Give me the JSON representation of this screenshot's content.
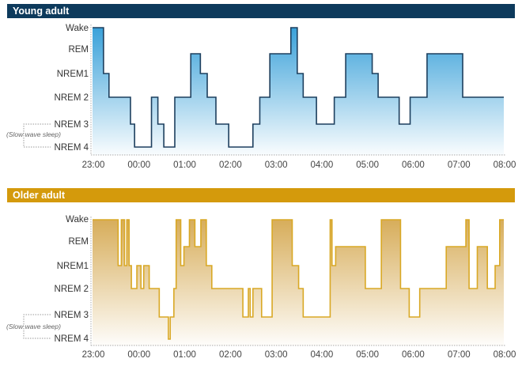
{
  "stages": [
    "Wake",
    "REM",
    "NREM 1",
    "NREM 2",
    "NREM 3",
    "NREM 4"
  ],
  "stage_labels": [
    "Wake",
    "REM",
    "NREM1",
    "NREM 2",
    "NREM 3",
    "NREM 4"
  ],
  "slow_wave_label": "(Slow wave sleep)",
  "chart_data": [
    {
      "type": "line",
      "title": "Young adult",
      "color": "#1d3f5e",
      "header_color": "#0d3a5c",
      "fill_top": "#3aa1d9",
      "x_ticks": [
        "23:00",
        "00:00",
        "01:00",
        "02:00",
        "03:00",
        "04:00",
        "05:00",
        "06:00",
        "07:00",
        "08:00"
      ],
      "xlim_hours_after_2300": [
        0,
        9
      ],
      "steps": [
        [
          "Wake",
          0.24
        ],
        [
          "NREM 1",
          0.36
        ],
        [
          "NREM 2",
          0.83
        ],
        [
          "NREM 3",
          0.92
        ],
        [
          "NREM 4",
          1.29
        ],
        [
          "NREM 2",
          1.43
        ],
        [
          "NREM 3",
          1.56
        ],
        [
          "NREM 4",
          1.8
        ],
        [
          "NREM 2",
          2.15
        ],
        [
          "REM",
          2.36
        ],
        [
          "NREM 1",
          2.51
        ],
        [
          "NREM 2",
          2.7
        ],
        [
          "NREM 3",
          2.98
        ],
        [
          "NREM 4",
          3.51
        ],
        [
          "NREM 3",
          3.66
        ],
        [
          "NREM 2",
          3.88
        ],
        [
          "REM",
          4.34
        ],
        [
          "Wake",
          4.48
        ],
        [
          "NREM 1",
          4.61
        ],
        [
          "NREM 2",
          4.9
        ],
        [
          "NREM 3",
          5.29
        ],
        [
          "NREM 2",
          5.54
        ],
        [
          "REM",
          6.12
        ],
        [
          "NREM 1",
          6.25
        ],
        [
          "NREM 2",
          6.71
        ],
        [
          "NREM 3",
          6.95
        ],
        [
          "NREM 2",
          7.32
        ],
        [
          "REM",
          8.1
        ],
        [
          "NREM 2",
          9.0
        ]
      ]
    },
    {
      "type": "line",
      "title": "Older adult",
      "color": "#d9a825",
      "header_color": "#d49a0c",
      "fill_top": "#d7ad5a",
      "x_ticks": [
        "23:00",
        "00:00",
        "01:00",
        "02:00",
        "03:00",
        "04:00",
        "05:00",
        "06:00",
        "07:00",
        "08:00"
      ],
      "xlim_hours_after_2300": [
        0,
        9
      ],
      "steps": [
        [
          "Wake",
          0.56
        ],
        [
          "NREM 1",
          0.63
        ],
        [
          "Wake",
          0.7
        ],
        [
          "NREM 1",
          0.75
        ],
        [
          "Wake",
          0.8
        ],
        [
          "NREM 1",
          0.85
        ],
        [
          "NREM 2",
          0.97
        ],
        [
          "NREM 1",
          1.06
        ],
        [
          "NREM 2",
          1.12
        ],
        [
          "NREM 1",
          1.24
        ],
        [
          "NREM 2",
          1.46
        ],
        [
          "NREM 3",
          1.66
        ],
        [
          "NREM 4",
          1.7
        ],
        [
          "NREM 3",
          1.78
        ],
        [
          "NREM 2",
          1.83
        ],
        [
          "Wake",
          1.93
        ],
        [
          "NREM 1",
          2.0
        ],
        [
          "REM",
          2.12
        ],
        [
          "Wake",
          2.24
        ],
        [
          "REM",
          2.37
        ],
        [
          "Wake",
          2.49
        ],
        [
          "NREM 1",
          2.61
        ],
        [
          "NREM 2",
          3.29
        ],
        [
          "NREM 3",
          3.41
        ],
        [
          "NREM 2",
          3.45
        ],
        [
          "NREM 3",
          3.51
        ],
        [
          "NREM 2",
          3.7
        ],
        [
          "NREM 3",
          3.93
        ],
        [
          "Wake",
          4.37
        ],
        [
          "NREM 1",
          4.51
        ],
        [
          "NREM 2",
          4.61
        ],
        [
          "NREM 3",
          5.2
        ],
        [
          "Wake",
          5.24
        ],
        [
          "NREM 1",
          5.32
        ],
        [
          "REM",
          5.97
        ],
        [
          "NREM 2",
          6.32
        ],
        [
          "Wake",
          6.74
        ],
        [
          "NREM 2",
          6.93
        ],
        [
          "NREM 3",
          7.16
        ],
        [
          "NREM 2",
          7.74
        ],
        [
          "REM",
          8.17
        ],
        [
          "Wake",
          8.24
        ],
        [
          "NREM 2",
          8.42
        ],
        [
          "REM",
          8.64
        ],
        [
          "NREM 2",
          8.81
        ],
        [
          "NREM 1",
          8.91
        ],
        [
          "Wake",
          9.0
        ]
      ]
    }
  ]
}
